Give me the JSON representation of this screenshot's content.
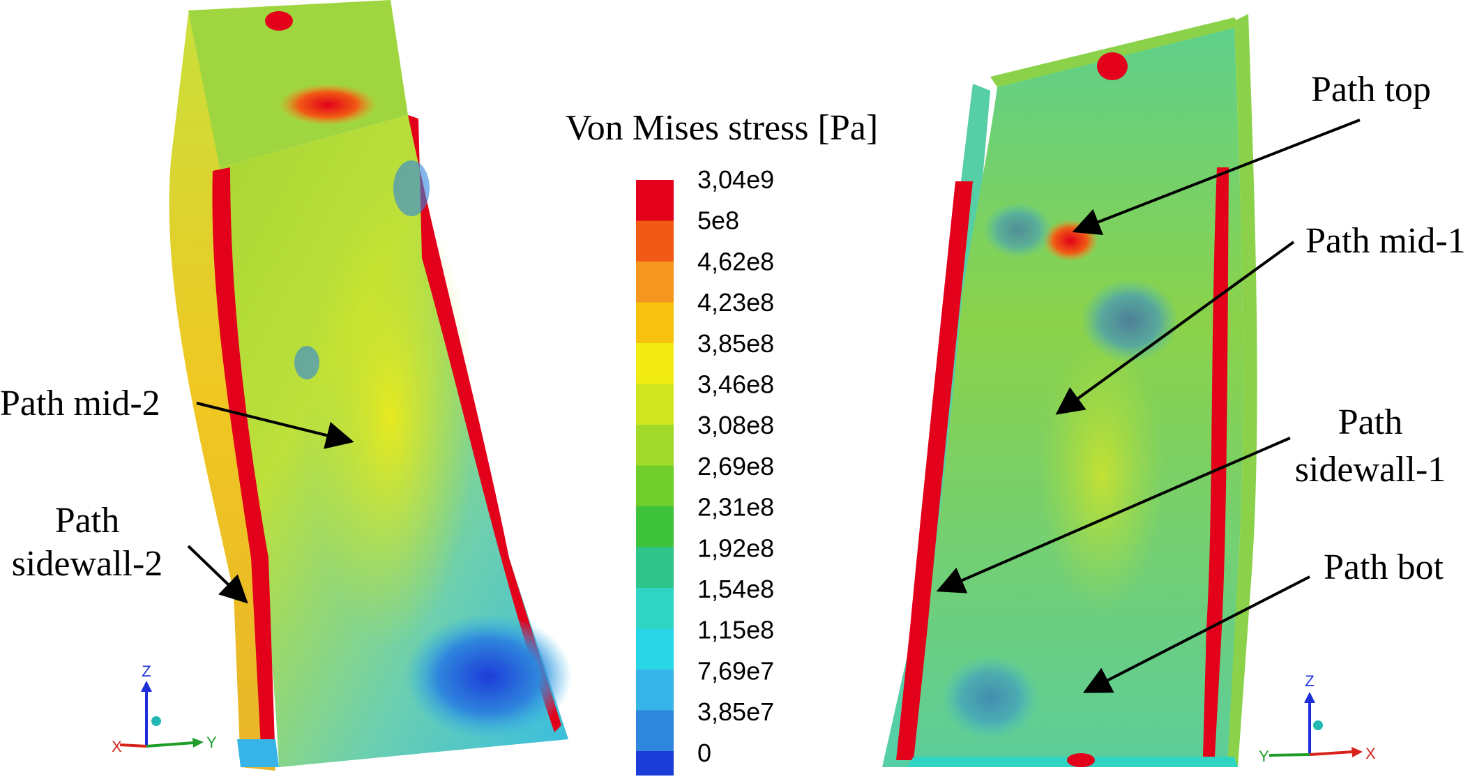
{
  "legend": {
    "title": "Von Mises stress [Pa]",
    "ticks": [
      "3,04e9",
      "5e8",
      "4,62e8",
      "4,23e8",
      "3,85e8",
      "3,46e8",
      "3,08e8",
      "2,69e8",
      "2,31e8",
      "1,92e8",
      "1,54e8",
      "1,15e8",
      "7,69e7",
      "3,85e7",
      "0"
    ],
    "colors": [
      "#e3001b",
      "#f05a14",
      "#f5961e",
      "#f7c20f",
      "#f3ec13",
      "#cfe620",
      "#a2d92a",
      "#6fcd2c",
      "#3fc23c",
      "#2ec48a",
      "#2fd5c2",
      "#28d6e8",
      "#36b4e8",
      "#2f86dd",
      "#1c3cd8"
    ]
  },
  "labels": {
    "path_mid_2": "Path mid-2",
    "path_sidewall_2_line1": "Path",
    "path_sidewall_2_line2": "sidewall-2",
    "path_top": "Path top",
    "path_mid_1": "Path mid-1",
    "path_sidewall_1_line1": "Path",
    "path_sidewall_1_line2": "sidewall-1",
    "path_bot": "Path bot"
  },
  "triad_left": {
    "z": "Z",
    "x": "X",
    "y": "Y"
  },
  "triad_right": {
    "z": "Z",
    "x": "X",
    "y": "Y"
  }
}
